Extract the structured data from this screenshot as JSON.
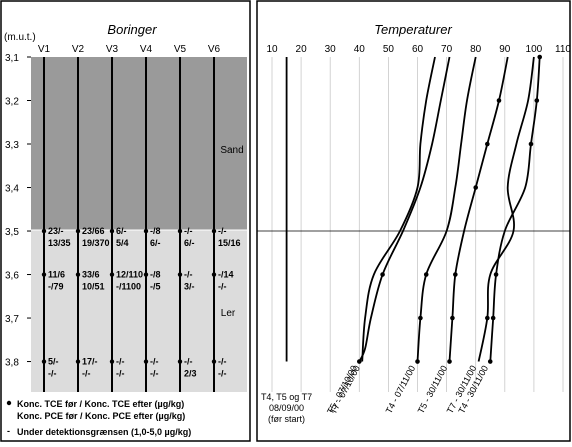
{
  "left_panel": {
    "title": "Boringer",
    "depth_unit": "(m.u.t.)",
    "depth_ticks": [
      "3,1",
      "3,2",
      "3,3",
      "3,4",
      "3,5",
      "3,6",
      "3,7",
      "3,8"
    ],
    "wells": [
      "V1",
      "V2",
      "V3",
      "V4",
      "V5",
      "V6"
    ],
    "zone_sand": "Sand",
    "zone_ler": "Ler",
    "concentrations": [
      {
        "well": "V1",
        "depth": 3.5,
        "line1": "23/-",
        "line2": "13/35"
      },
      {
        "well": "V2",
        "depth": 3.5,
        "line1": "23/66",
        "line2": "19/370"
      },
      {
        "well": "V3",
        "depth": 3.5,
        "line1": "6/-",
        "line2": "5/4"
      },
      {
        "well": "V4",
        "depth": 3.5,
        "line1": "-/8",
        "line2": "6/-"
      },
      {
        "well": "V5",
        "depth": 3.5,
        "line1": "-/-",
        "line2": "6/-"
      },
      {
        "well": "V6",
        "depth": 3.5,
        "line1": "-/-",
        "line2": "15/16"
      },
      {
        "well": "V1",
        "depth": 3.6,
        "line1": "11/6",
        "line2": "-/79"
      },
      {
        "well": "V2",
        "depth": 3.6,
        "line1": "33/6",
        "line2": "10/51"
      },
      {
        "well": "V3",
        "depth": 3.6,
        "line1": "12/110",
        "line2": "-/1100"
      },
      {
        "well": "V4",
        "depth": 3.6,
        "line1": "-/8",
        "line2": "-/5"
      },
      {
        "well": "V5",
        "depth": 3.6,
        "line1": "-/-",
        "line2": "3/-"
      },
      {
        "well": "V6",
        "depth": 3.6,
        "line1": "-/14",
        "line2": "-/-"
      },
      {
        "well": "V1",
        "depth": 3.8,
        "line1": "5/-",
        "line2": "-/-"
      },
      {
        "well": "V2",
        "depth": 3.8,
        "line1": "17/-",
        "line2": "-/-"
      },
      {
        "well": "V3",
        "depth": 3.8,
        "line1": "-/-",
        "line2": "-/-"
      },
      {
        "well": "V4",
        "depth": 3.8,
        "line1": "-/-",
        "line2": "-/-"
      },
      {
        "well": "V5",
        "depth": 3.8,
        "line1": "-/-",
        "line2": "2/3"
      },
      {
        "well": "V6",
        "depth": 3.8,
        "line1": "-/-",
        "line2": "-/-"
      }
    ],
    "legend_line1": "Konc. TCE før / Konc. TCE efter (µg/kg)",
    "legend_line2": "Konc. PCE før / Konc. PCE efter (µg/kg)",
    "legend_line3": "Under detektionsgrænsen (1,0-5,0 µg/kg)",
    "legend_dash": "-",
    "colors": {
      "sand": "#9a9a9a",
      "ler": "#dcdcdc"
    }
  },
  "chart_data": {
    "type": "line",
    "title": "Temperaturer",
    "xlabel": "",
    "ylabel": "",
    "x_ticks": [
      10,
      20,
      30,
      40,
      50,
      60,
      70,
      80,
      90,
      100,
      110
    ],
    "xlim": [
      6,
      113
    ],
    "ylim": [
      3.1,
      3.87
    ],
    "grid": true,
    "reference_depth": 3.5,
    "series": [
      {
        "name": "T4, T5 og T7 08/09/00 (før start)",
        "label_lines": [
          "T4, T5 og T7",
          "08/09/00",
          "(før start)"
        ],
        "x": [
          15,
          15,
          15,
          15,
          15,
          15,
          15,
          15
        ],
        "y": [
          3.1,
          3.2,
          3.3,
          3.4,
          3.5,
          3.6,
          3.7,
          3.8
        ],
        "markers": false
      },
      {
        "name": "T5 - 07/10/00",
        "x": [
          71,
          68,
          65,
          61,
          55,
          48,
          44,
          42,
          40
        ],
        "y": [
          3.1,
          3.2,
          3.3,
          3.4,
          3.5,
          3.6,
          3.7,
          3.77,
          3.8
        ],
        "markers": [
          false,
          false,
          false,
          false,
          false,
          true,
          false,
          false,
          true
        ]
      },
      {
        "name": "T7 - 07/10/00",
        "x": [
          66,
          63,
          61,
          60,
          54,
          45,
          42,
          41
        ],
        "y": [
          3.1,
          3.2,
          3.3,
          3.4,
          3.5,
          3.6,
          3.7,
          3.8
        ],
        "markers": false
      },
      {
        "name": "T4 - 07/11/00",
        "x": [
          80,
          77,
          75,
          73,
          70,
          63,
          61,
          60
        ],
        "y": [
          3.1,
          3.2,
          3.3,
          3.4,
          3.5,
          3.6,
          3.7,
          3.8
        ],
        "markers": [
          false,
          false,
          false,
          false,
          false,
          true,
          true,
          true
        ]
      },
      {
        "name": "T5 - 30/11/00",
        "x": [
          91,
          88,
          84,
          80,
          76,
          73,
          72,
          71
        ],
        "y": [
          3.1,
          3.2,
          3.3,
          3.4,
          3.5,
          3.6,
          3.7,
          3.8
        ],
        "markers": [
          false,
          true,
          true,
          true,
          false,
          true,
          true,
          true
        ]
      },
      {
        "name": "T7 - 30/11/00",
        "x": [
          100,
          98,
          94,
          91,
          93,
          85,
          84,
          81
        ],
        "y": [
          3.1,
          3.2,
          3.3,
          3.4,
          3.5,
          3.6,
          3.7,
          3.8
        ],
        "markers": [
          false,
          false,
          false,
          false,
          false,
          false,
          true,
          false
        ]
      },
      {
        "name": "T4 - 30/11/00",
        "x": [
          102,
          101,
          99,
          97,
          90,
          87,
          86,
          85
        ],
        "y": [
          3.1,
          3.2,
          3.3,
          3.4,
          3.5,
          3.6,
          3.7,
          3.8
        ],
        "markers": [
          true,
          true,
          true,
          false,
          false,
          true,
          true,
          true
        ]
      }
    ]
  }
}
